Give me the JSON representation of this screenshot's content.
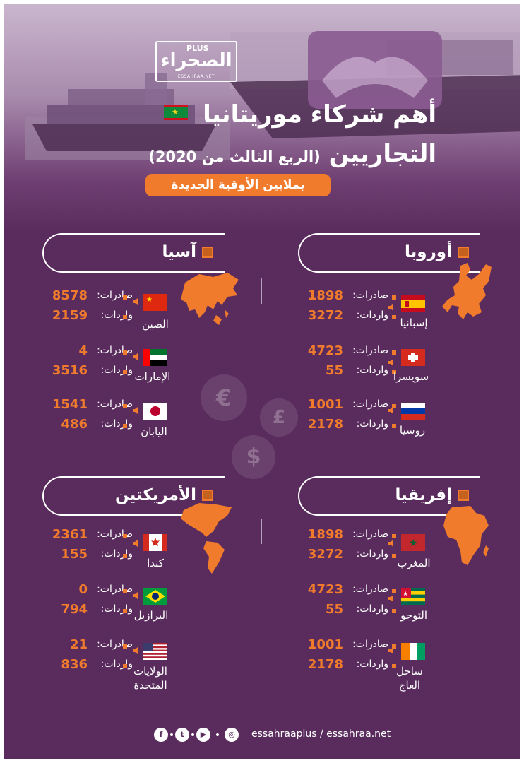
{
  "brand": {
    "plus": "PLUS",
    "logo_text": "الصحراء",
    "logo_url": "ESSAHRAA.NET"
  },
  "title": {
    "line1": "أهم شركاء موريتانيا",
    "line2": "التجاريين",
    "line2_sub": "(الربع الثالث من 2020)"
  },
  "unit_label": "بملايين الأوقية الجديدة",
  "labels": {
    "exports": "صادرات:",
    "imports": "واردات:"
  },
  "regions": {
    "europe": {
      "name": "أوروبا",
      "countries": [
        {
          "name": "إسبانيا",
          "exports": "1898",
          "imports": "3272"
        },
        {
          "name": "سويسرا",
          "exports": "4723",
          "imports": "55"
        },
        {
          "name": "روسيا",
          "exports": "1001",
          "imports": "2178"
        }
      ]
    },
    "asia": {
      "name": "آسيا",
      "countries": [
        {
          "name": "الصين",
          "exports": "8578",
          "imports": "2159"
        },
        {
          "name": "الإمارات",
          "exports": "4",
          "imports": "3516"
        },
        {
          "name": "اليابان",
          "exports": "1541",
          "imports": "486"
        }
      ]
    },
    "africa": {
      "name": "إفريقيا",
      "countries": [
        {
          "name": "المغرب",
          "exports": "1898",
          "imports": "3272"
        },
        {
          "name": "التوجو",
          "exports": "4723",
          "imports": "55"
        },
        {
          "name": "ساحل العاج",
          "exports": "1001",
          "imports": "2178"
        }
      ]
    },
    "americas": {
      "name": "الأمريكتين",
      "countries": [
        {
          "name": "كندا",
          "exports": "2361",
          "imports": "155"
        },
        {
          "name": "البرازيل",
          "exports": "0",
          "imports": "794"
        },
        {
          "name": "الولايات المتحدة",
          "exports": "21",
          "imports": "836"
        }
      ]
    }
  },
  "footer": {
    "url": "essahraaplus / essahraa.net"
  },
  "colors": {
    "background": "#5a2c5d",
    "accent": "#f07b2c",
    "text": "#ffffff"
  },
  "icons": [
    "facebook-icon",
    "twitter-icon",
    "youtube-icon",
    "globe-icon",
    "speaker-icon"
  ]
}
